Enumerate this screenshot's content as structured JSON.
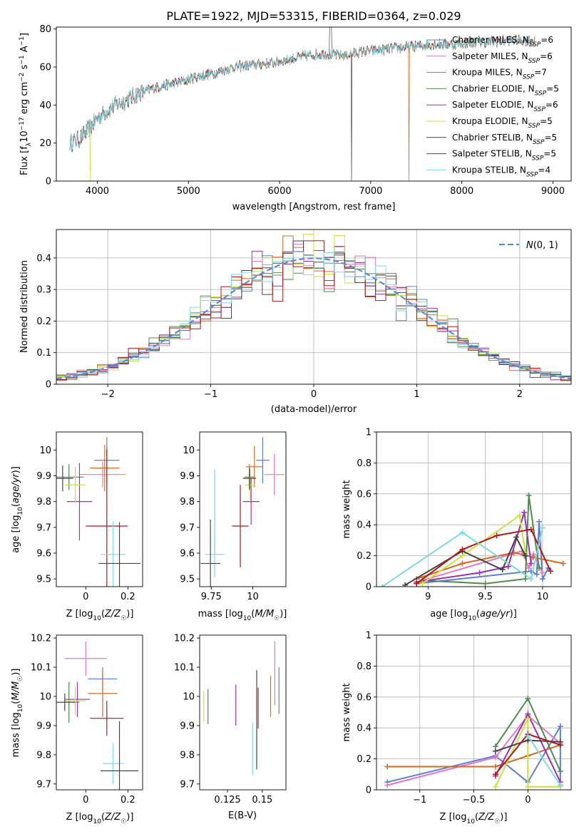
{
  "title": "PLATE=1922, MJD=53315, FIBERID=0364, z=0.029",
  "chart_data": [
    {
      "id": "spectrum",
      "type": "line",
      "xlabel": "wavelength [Angstrom, rest frame]",
      "ylabel": "Flux [f_λ 10^-17 erg cm^-2 s^-1 A^-1]",
      "xlim": [
        3550,
        9200
      ],
      "ylim": [
        0,
        81
      ],
      "xticks": [
        4000,
        5000,
        6000,
        7000,
        8000,
        9000
      ],
      "yticks": [
        0,
        20,
        40,
        60,
        80
      ],
      "legend_position": "top-right",
      "continuum_x": [
        3700,
        3800,
        3900,
        4000,
        4100,
        4200,
        4300,
        4400,
        4500,
        4700,
        4900,
        5100,
        5300,
        5500,
        5700,
        5900,
        6100,
        6300,
        6500,
        6700,
        6900,
        7100,
        7300,
        7500,
        7700,
        7900,
        8100,
        8300,
        8500,
        8700,
        8800
      ],
      "continuum_y": [
        20,
        22,
        27,
        33,
        37,
        40,
        42,
        45,
        47,
        50,
        52,
        55,
        57,
        60,
        61,
        62,
        64,
        66,
        67,
        66,
        68,
        69,
        70,
        71,
        72,
        72,
        73,
        73,
        74,
        74,
        74
      ],
      "series": [
        {
          "name": "Chabrier MILES, N_SSP=6",
          "color": "#5b7fd4",
          "drop_x": null
        },
        {
          "name": "Salpeter MILES, N_SSP=6",
          "color": "#e377c2",
          "drop_x": null
        },
        {
          "name": "Kroupa MILES, N_SSP=7",
          "color": "#d2691e",
          "drop_x": 7420
        },
        {
          "name": "Chabrier ELODIE, N_SSP=5",
          "color": "#4e8a4e",
          "drop_x": null
        },
        {
          "name": "Salpeter ELODIE, N_SSP=6",
          "color": "#9b30b3",
          "drop_x": null
        },
        {
          "name": "Kroupa ELODIE, N_SSP=5",
          "color": "#c9e13a",
          "drop_x": 3920
        },
        {
          "name": "Chabrier STELIB, N_SSP=5",
          "color": "#444444",
          "drop_x": 6790
        },
        {
          "name": "Salpeter STELIB, N_SSP=5",
          "color": "#b01818",
          "drop_x": null
        },
        {
          "name": "Kroupa STELIB, N_SSP=4",
          "color": "#7fd8e0",
          "drop_x": null
        }
      ],
      "labels": [
        {
          "pre": "Chabrier MILES, N",
          "sub": "SSP",
          "post": "=6"
        },
        {
          "pre": "Salpeter MILES, N",
          "sub": "SSP",
          "post": "=6"
        },
        {
          "pre": "Kroupa MILES, N",
          "sub": "SSP",
          "post": "=7"
        },
        {
          "pre": "Chabrier ELODIE, N",
          "sub": "SSP",
          "post": "=5"
        },
        {
          "pre": "Salpeter ELODIE, N",
          "sub": "SSP",
          "post": "=6"
        },
        {
          "pre": "Kroupa ELODIE, N",
          "sub": "SSP",
          "post": "=5"
        },
        {
          "pre": "Chabrier STELIB, N",
          "sub": "SSP",
          "post": "=5"
        },
        {
          "pre": "Salpeter STELIB, N",
          "sub": "SSP",
          "post": "=5"
        },
        {
          "pre": "Kroupa STELIB, N",
          "sub": "SSP",
          "post": "=4"
        }
      ]
    },
    {
      "id": "residuals",
      "type": "histogram",
      "xlabel": "(data-model)/error",
      "ylabel": "Normed distribution",
      "xlim": [
        -2.5,
        2.5
      ],
      "ylim": [
        0,
        0.49
      ],
      "xticks": [
        -2,
        -1,
        0,
        1,
        2
      ],
      "yticks": [
        0.0,
        0.1,
        0.2,
        0.3,
        0.4
      ],
      "grid": true,
      "bin_width": 0.1,
      "reference_curve": {
        "name": "N(0,1)",
        "color": "#5b8bd6",
        "style": "dashed"
      },
      "series_colors": [
        "#5b7fd4",
        "#e377c2",
        "#d2691e",
        "#4e8a4e",
        "#9b30b3",
        "#c9e13a",
        "#444444",
        "#b01818",
        "#7fd8e0"
      ]
    },
    {
      "id": "age-vs-Z",
      "type": "scatter-errorbar",
      "xlabel": "Z [log10(Z/Z☉)]",
      "ylabel": "age [log10(age/yr)]",
      "xlim": [
        -0.14,
        0.27
      ],
      "ylim": [
        9.47,
        10.07
      ],
      "xticks": [
        0.0,
        0.2
      ],
      "yticks": [
        9.5,
        9.6,
        9.7,
        9.8,
        9.9,
        10.0
      ],
      "points": [
        {
          "x": 0.1,
          "xe": 0.06,
          "y": 9.96,
          "ye": 0.09,
          "c": "#5b7fd4"
        },
        {
          "x": 0.08,
          "xe": 0.11,
          "y": 9.905,
          "ye": 0.05,
          "c": "#e377c2"
        },
        {
          "x": 0.09,
          "xe": 0.07,
          "y": 9.93,
          "ye": 0.09,
          "c": "#d2691e"
        },
        {
          "x": -0.08,
          "xe": 0.07,
          "y": 9.895,
          "ye": 0.05,
          "c": "#4e8a4e"
        },
        {
          "x": -0.03,
          "xe": 0.06,
          "y": 9.8,
          "ye": 0.15,
          "c": "#9b30b3"
        },
        {
          "x": -0.05,
          "xe": 0.05,
          "y": 9.865,
          "ye": 0.07,
          "c": "#c9e13a"
        },
        {
          "x": -0.11,
          "xe": 0.05,
          "y": 9.89,
          "ye": 0.05,
          "c": "#444444"
        },
        {
          "x": 0.1,
          "xe": 0.1,
          "y": 9.705,
          "ye": 0.3,
          "c": "#b01818"
        },
        {
          "x": 0.13,
          "xe": 0.06,
          "y": 9.595,
          "ye": 0.13,
          "c": "#7fd8e0"
        },
        {
          "x": 0.16,
          "xe": 0.1,
          "y": 9.56,
          "ye": 0.16,
          "c": "#444444"
        }
      ]
    },
    {
      "id": "age-vs-mass",
      "type": "scatter-errorbar",
      "xlabel": "mass [log10(M/M☉)]",
      "ylabel": "",
      "xlim": [
        9.68,
        10.2
      ],
      "ylim": [
        9.47,
        10.07
      ],
      "xticks": [
        9.75,
        10.0
      ],
      "yticks": [
        9.5,
        9.6,
        9.7,
        9.8,
        9.9,
        10.0
      ],
      "points": [
        {
          "x": 10.06,
          "xe": 0.04,
          "y": 9.96,
          "ye": 0.09,
          "c": "#5b7fd4"
        },
        {
          "x": 10.13,
          "xe": 0.06,
          "y": 9.905,
          "ye": 0.08,
          "c": "#e377c2"
        },
        {
          "x": 10.01,
          "xe": 0.05,
          "y": 9.935,
          "ye": 0.08,
          "c": "#d2691e"
        },
        {
          "x": 9.98,
          "xe": 0.03,
          "y": 9.895,
          "ye": 0.05,
          "c": "#4e8a4e"
        },
        {
          "x": 9.99,
          "xe": 0.05,
          "y": 9.8,
          "ye": 0.09,
          "c": "#9b30b3"
        },
        {
          "x": 9.985,
          "xe": 0.03,
          "y": 9.865,
          "ye": 0.06,
          "c": "#c9e13a"
        },
        {
          "x": 9.98,
          "xe": 0.04,
          "y": 9.89,
          "ye": 0.04,
          "c": "#444444"
        },
        {
          "x": 9.925,
          "xe": 0.05,
          "y": 9.705,
          "ye": 0.16,
          "c": "#b01818"
        },
        {
          "x": 9.77,
          "xe": 0.06,
          "y": 9.595,
          "ye": 0.09,
          "c": "#7fd8e0"
        },
        {
          "x": 9.745,
          "xe": 0.06,
          "y": 9.56,
          "ye": 0.17,
          "c": "#444444"
        },
        {
          "x": 9.77,
          "xe": 0.0,
          "y": 9.755,
          "ye": 0.17,
          "c": "#7fd8e0"
        }
      ]
    },
    {
      "id": "mass-weight-vs-age",
      "type": "line",
      "xlabel": "age [log10(age/yr)]",
      "ylabel": "mass weight",
      "xlim": [
        8.55,
        10.25
      ],
      "ylim": [
        0,
        1.0
      ],
      "xticks": [
        9.0,
        9.5,
        10.0
      ],
      "yticks": [
        0.0,
        0.2,
        0.4,
        0.6,
        0.8,
        1.0
      ],
      "grid": true,
      "series": [
        {
          "c": "#5b7fd4",
          "x": [
            8.9,
            9.9,
            9.95,
            9.97,
            10.0,
            10.05
          ],
          "y": [
            0.02,
            0.1,
            0.08,
            0.42,
            0.05,
            0.12
          ]
        },
        {
          "c": "#e377c2",
          "x": [
            8.95,
            9.82,
            9.88,
            9.92,
            10.0
          ],
          "y": [
            0.04,
            0.23,
            0.12,
            0.21,
            0.09
          ]
        },
        {
          "c": "#d2691e",
          "x": [
            8.9,
            9.3,
            9.75,
            9.92,
            10.18
          ],
          "y": [
            0.05,
            0.15,
            0.22,
            0.19,
            0.15
          ]
        },
        {
          "c": "#4e8a4e",
          "x": [
            8.95,
            9.5,
            9.85,
            9.88,
            9.97
          ],
          "y": [
            0.04,
            0.02,
            0.05,
            0.59,
            0.12
          ]
        },
        {
          "c": "#9b30b3",
          "x": [
            8.9,
            9.45,
            9.7,
            9.84,
            9.9
          ],
          "y": [
            0.03,
            0.09,
            0.13,
            0.48,
            0.15
          ]
        },
        {
          "c": "#c9e13a",
          "x": [
            8.95,
            9.3,
            9.8,
            9.85
          ],
          "y": [
            0.02,
            0.2,
            0.46,
            0.22
          ]
        },
        {
          "c": "#444444",
          "x": [
            8.8,
            9.3,
            9.65,
            9.77,
            9.85
          ],
          "y": [
            0.01,
            0.23,
            0.11,
            0.32,
            0.2
          ]
        },
        {
          "c": "#b01818",
          "x": [
            8.9,
            9.3,
            9.6,
            9.9,
            10.07
          ],
          "y": [
            0.02,
            0.24,
            0.33,
            0.37,
            0.1
          ]
        },
        {
          "c": "#7fd8e0",
          "x": [
            8.6,
            9.3,
            9.9,
            10.0
          ],
          "y": [
            0.0,
            0.35,
            0.05,
            0.38
          ]
        }
      ]
    },
    {
      "id": "mass-vs-Z",
      "type": "scatter-errorbar",
      "xlabel": "Z [log10(Z/Z☉)]",
      "ylabel": "mass [log10(M/M☉)]",
      "xlim": [
        -0.14,
        0.27
      ],
      "ylim": [
        9.68,
        10.21
      ],
      "xticks": [
        0.0,
        0.2
      ],
      "yticks": [
        9.7,
        9.8,
        9.9,
        10.0,
        10.1,
        10.2
      ],
      "points": [
        {
          "x": 0.08,
          "xe": 0.07,
          "y": 10.06,
          "ye": 0.04,
          "c": "#5b7fd4"
        },
        {
          "x": 0.0,
          "xe": 0.1,
          "y": 10.13,
          "ye": 0.06,
          "c": "#e377c2"
        },
        {
          "x": 0.08,
          "xe": 0.07,
          "y": 10.01,
          "ye": 0.08,
          "c": "#d2691e"
        },
        {
          "x": -0.08,
          "xe": 0.05,
          "y": 9.98,
          "ye": 0.07,
          "c": "#4e8a4e"
        },
        {
          "x": -0.04,
          "xe": 0.06,
          "y": 9.99,
          "ye": 0.06,
          "c": "#9b30b3"
        },
        {
          "x": -0.05,
          "xe": 0.05,
          "y": 9.985,
          "ye": 0.05,
          "c": "#c9e13a"
        },
        {
          "x": -0.1,
          "xe": 0.05,
          "y": 9.98,
          "ye": 0.03,
          "c": "#444444"
        },
        {
          "x": 0.1,
          "xe": 0.08,
          "y": 9.925,
          "ye": 0.06,
          "c": "#b01818"
        },
        {
          "x": 0.13,
          "xe": 0.05,
          "y": 9.77,
          "ye": 0.07,
          "c": "#7fd8e0"
        },
        {
          "x": 0.16,
          "xe": 0.09,
          "y": 9.745,
          "ye": 0.17,
          "c": "#444444"
        }
      ]
    },
    {
      "id": "mass-vs-EBV",
      "type": "scatter-errorbar",
      "xlabel": "E(B-V)",
      "ylabel": "",
      "xlim": [
        0.105,
        0.167
      ],
      "ylim": [
        9.68,
        10.21
      ],
      "xticks": [
        0.125,
        0.15
      ],
      "yticks": [
        9.7,
        9.8,
        9.9,
        10.0,
        10.1,
        10.2
      ],
      "points": [
        {
          "x": 0.162,
          "y": 10.02,
          "ye": 0.08,
          "c": "#5b7fd4"
        },
        {
          "x": 0.159,
          "y": 10.08,
          "ye": 0.11,
          "c": "#e377c2"
        },
        {
          "x": 0.156,
          "y": 10.0,
          "ye": 0.07,
          "c": "#d2691e"
        },
        {
          "x": 0.111,
          "y": 9.965,
          "ye": 0.06,
          "c": "#4e8a4e"
        },
        {
          "x": 0.131,
          "y": 9.97,
          "ye": 0.07,
          "c": "#9b30b3"
        },
        {
          "x": 0.108,
          "y": 9.965,
          "ye": 0.05,
          "c": "#c9e13a"
        },
        {
          "x": 0.146,
          "y": 9.92,
          "ye": 0.17,
          "c": "#444444"
        },
        {
          "x": 0.147,
          "y": 9.96,
          "ye": 0.07,
          "c": "#b01818"
        },
        {
          "x": 0.143,
          "y": 9.82,
          "ye": 0.09,
          "c": "#7fd8e0"
        }
      ]
    },
    {
      "id": "mass-weight-vs-Z",
      "type": "line",
      "xlabel": "Z [log10(Z/Z☉)]",
      "ylabel": "mass weight",
      "xlim": [
        -1.4,
        0.4
      ],
      "ylim": [
        0,
        1.0
      ],
      "xticks": [
        -1.0,
        -0.5,
        0.0
      ],
      "yticks": [
        0.0,
        0.2,
        0.4,
        0.6,
        0.8,
        1.0
      ],
      "grid": true,
      "series": [
        {
          "c": "#5b7fd4",
          "x": [
            -1.3,
            -0.3,
            0.0,
            0.3,
            0.3
          ],
          "y": [
            0.05,
            0.22,
            0.05,
            0.41,
            0.03
          ]
        },
        {
          "c": "#e377c2",
          "x": [
            -1.3,
            -0.3,
            0.0,
            0.3
          ],
          "y": [
            0.03,
            0.21,
            0.48,
            0.3
          ]
        },
        {
          "c": "#d2691e",
          "x": [
            -1.3,
            -0.3,
            0.0,
            0.3
          ],
          "y": [
            0.15,
            0.15,
            0.22,
            0.29
          ]
        },
        {
          "c": "#4e8a4e",
          "x": [
            -0.3,
            0.0,
            0.3
          ],
          "y": [
            0.28,
            0.59,
            0.12
          ]
        },
        {
          "c": "#9b30b3",
          "x": [
            -0.3,
            0.0,
            0.3
          ],
          "y": [
            0.09,
            0.49,
            0.05
          ]
        },
        {
          "c": "#c9e13a",
          "x": [
            -0.3,
            0.0,
            0.0,
            0.3
          ],
          "y": [
            0.02,
            0.46,
            0.02,
            0.02
          ]
        },
        {
          "c": "#444444",
          "x": [
            -0.3,
            0.0,
            0.3
          ],
          "y": [
            0.25,
            0.32,
            0.31
          ]
        },
        {
          "c": "#b01818",
          "x": [
            -0.3,
            0.0,
            0.3
          ],
          "y": [
            0.1,
            0.36,
            0.29
          ]
        },
        {
          "c": "#7fd8e0",
          "x": [
            0.0,
            0.3
          ],
          "y": [
            0.35,
            0.03
          ]
        }
      ]
    }
  ]
}
